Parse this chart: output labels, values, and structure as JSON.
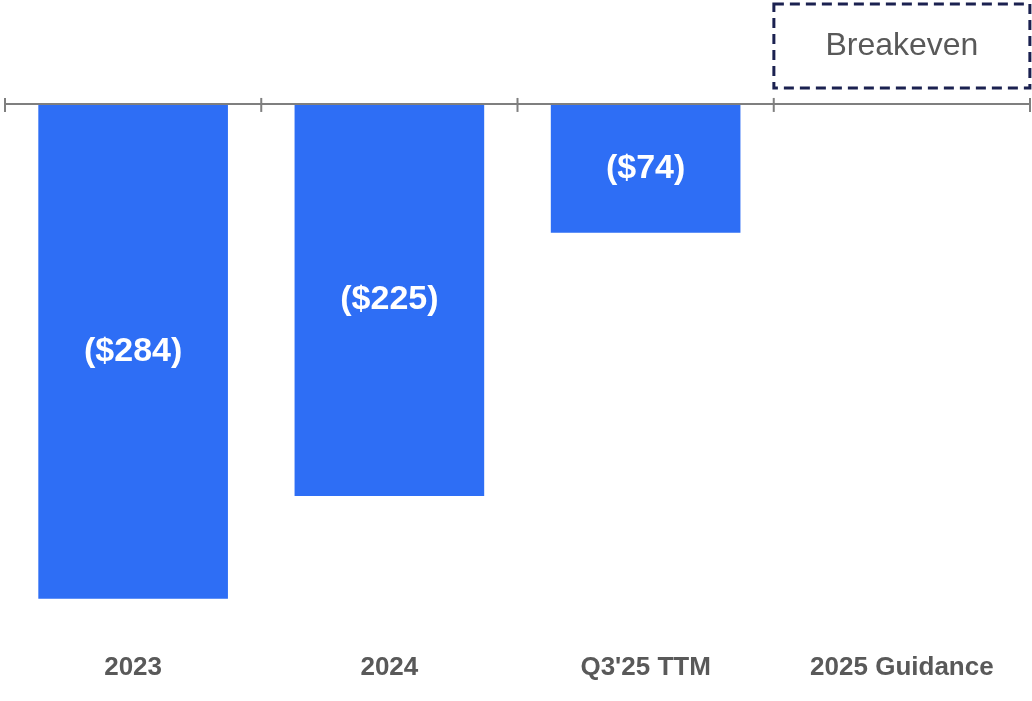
{
  "chart_data": {
    "type": "bar",
    "categories": [
      "2023",
      "2024",
      "Q3'25 TTM",
      "2025 Guidance"
    ],
    "values": [
      -284,
      -225,
      -74,
      0
    ],
    "value_labels": [
      "($284)",
      "($225)",
      "($74)",
      "Breakeven"
    ],
    "color": "#2e6ef5",
    "grid": false,
    "legend": false
  }
}
